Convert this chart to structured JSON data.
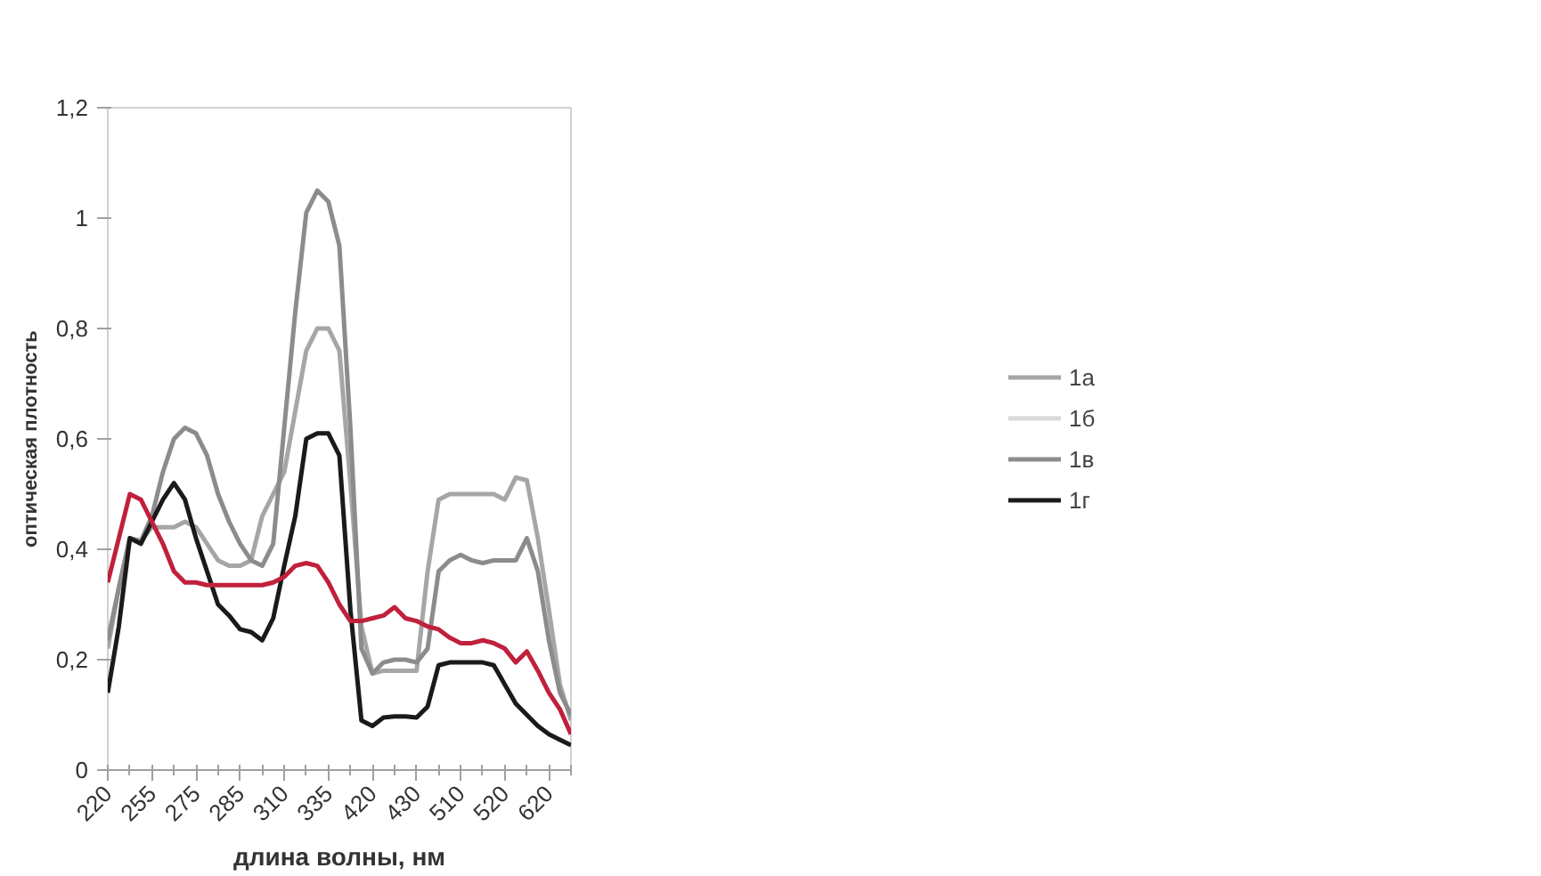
{
  "chart_data": {
    "type": "line",
    "xlabel": "длина волны, нм",
    "ylabel": "оптическая плотность",
    "categories": [
      "220",
      null,
      null,
      null,
      "255",
      null,
      null,
      null,
      "275",
      null,
      null,
      null,
      "285",
      null,
      null,
      null,
      "310",
      null,
      null,
      null,
      "335",
      null,
      null,
      null,
      "420",
      null,
      null,
      null,
      "430",
      null,
      null,
      null,
      "510",
      null,
      null,
      null,
      "520",
      null,
      null,
      null,
      "620",
      null,
      null
    ],
    "ylim": [
      0,
      1.2
    ],
    "yticks": [
      0,
      {
        "value": 0.2,
        "label": "0,2"
      },
      {
        "value": 0.4,
        "label": "0,4"
      },
      {
        "value": 0.6,
        "label": "0,6"
      },
      {
        "value": 0.8,
        "label": "0,8"
      },
      1,
      {
        "value": 1.2,
        "label": "1,2"
      }
    ],
    "grid": false,
    "legend": "right",
    "marker": "none",
    "line_style": "solid",
    "series": [
      {
        "name": "1а",
        "color": "#a6a6a6",
        "values": [
          0.22,
          0.33,
          0.42,
          0.415,
          0.44,
          0.44,
          0.44,
          0.45,
          0.44,
          0.41,
          0.38,
          0.37,
          0.37,
          0.38,
          0.46,
          0.5,
          0.54,
          0.65,
          0.76,
          0.8,
          0.8,
          0.76,
          0.52,
          0.26,
          0.175,
          0.18,
          0.18,
          0.18,
          0.18,
          0.36,
          0.49,
          0.5,
          0.5,
          0.5,
          0.5,
          0.5,
          0.49,
          0.53,
          0.525,
          0.42,
          0.29,
          0.155,
          0.09
        ]
      },
      {
        "name": "1б",
        "color": "#d9d9d9",
        "values": [
          null,
          null,
          null,
          null,
          null,
          null,
          null,
          null,
          null,
          null,
          null,
          null,
          null,
          null,
          null,
          null,
          null,
          null,
          null,
          null,
          null,
          null,
          null,
          null,
          null,
          null,
          null,
          null,
          null,
          null,
          null,
          null,
          null,
          null,
          null,
          null,
          null,
          null,
          null,
          null,
          null,
          null,
          null
        ]
      },
      {
        "name": "1в",
        "color": "#8c8c8c",
        "values": [
          0.235,
          0.33,
          0.42,
          0.415,
          0.46,
          0.54,
          0.6,
          0.62,
          0.61,
          0.57,
          0.5,
          0.45,
          0.41,
          0.38,
          0.37,
          0.41,
          0.62,
          0.83,
          1.01,
          1.05,
          1.03,
          0.95,
          0.62,
          0.22,
          0.175,
          0.195,
          0.2,
          0.2,
          0.195,
          0.22,
          0.36,
          0.38,
          0.39,
          0.38,
          0.375,
          0.38,
          0.38,
          0.38,
          0.42,
          0.36,
          0.235,
          0.14,
          0.1
        ]
      },
      {
        "name": "1г",
        "color": "#1a1a1a",
        "values": [
          0.14,
          0.26,
          0.42,
          0.41,
          0.45,
          0.49,
          0.52,
          0.49,
          0.42,
          0.36,
          0.3,
          0.28,
          0.255,
          0.25,
          0.235,
          0.275,
          0.37,
          0.46,
          0.6,
          0.61,
          0.61,
          0.57,
          0.29,
          0.09,
          0.08,
          0.095,
          0.097,
          0.097,
          0.095,
          0.115,
          0.19,
          0.195,
          0.195,
          0.195,
          0.195,
          0.19,
          0.155,
          0.12,
          0.1,
          0.08,
          0.065,
          0.055,
          0.045
        ]
      },
      {
        "color": "#c0203c",
        "values": [
          0.34,
          0.42,
          0.5,
          0.49,
          0.45,
          0.41,
          0.36,
          0.34,
          0.34,
          0.335,
          0.335,
          0.335,
          0.335,
          0.335,
          0.335,
          0.34,
          0.35,
          0.37,
          0.375,
          0.37,
          0.34,
          0.3,
          0.27,
          0.27,
          0.275,
          0.28,
          0.295,
          0.275,
          0.27,
          0.26,
          0.255,
          0.24,
          0.23,
          0.23,
          0.235,
          0.23,
          0.22,
          0.195,
          0.215,
          0.18,
          0.14,
          0.11,
          0.065
        ]
      }
    ]
  }
}
